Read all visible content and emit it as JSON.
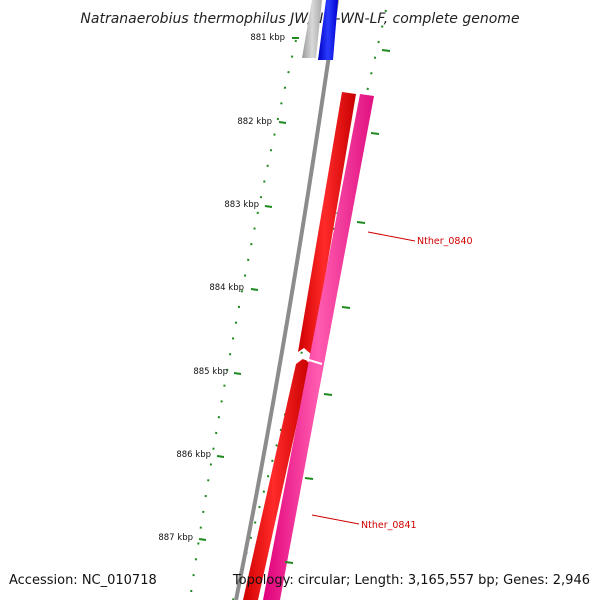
{
  "title": "Natranaerobius thermophilus JW/NM-WN-LF, complete genome",
  "scale": {
    "tick_labels": [
      "881 kbp",
      "882 kbp",
      "883 kbp",
      "884 kbp",
      "885 kbp",
      "886 kbp",
      "887 kbp"
    ]
  },
  "genes": [
    {
      "name": "Nther_0840"
    },
    {
      "name": "Nther_0841"
    }
  ],
  "footer": {
    "accession": "Accession: NC_010718",
    "summary": "Topology: circular; Length: 3,165,557 bp; Genes: 2,946"
  },
  "colors": {
    "background": "#ffffff",
    "backbone": "#888888",
    "tick_marks": "#1f8a1f",
    "cds_forward_red": "#ff0000",
    "cds_magenta": "#ff1493",
    "cds_blue": "#0000ff",
    "cds_grey": "#b0b0b0",
    "label_text": "#d00000"
  }
}
